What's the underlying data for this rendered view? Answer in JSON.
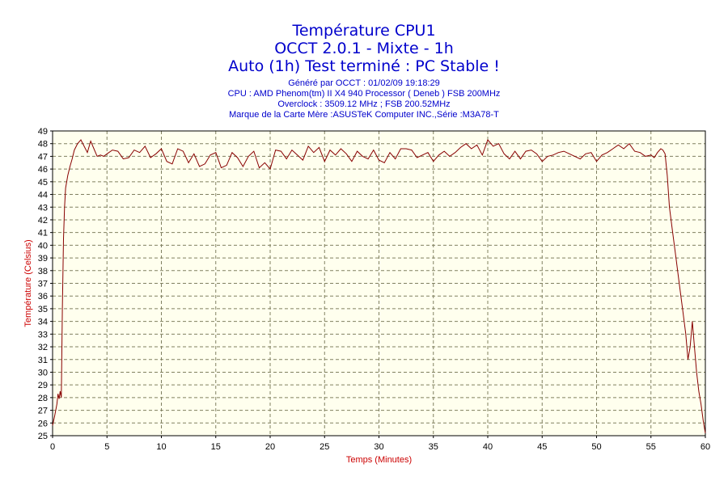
{
  "header": {
    "title_lines": [
      "Température CPU1",
      "OCCT 2.0.1 - Mixte - 1h",
      "Auto (1h) Test terminé : PC Stable !"
    ],
    "info_lines": [
      "Généré par OCCT : 01/02/09 19:18:29",
      "CPU : AMD Phenom(tm) II X4 940 Processor ( Deneb ) FSB 200MHz",
      "Overclock : 3509.12 MHz ; FSB 200.52MHz",
      "Marque de la Carte Mère :ASUSTeK Computer INC.,Série :M3A78-T"
    ]
  },
  "colors": {
    "title": "#0000cc",
    "axis_label": "#cc0000",
    "line": "#880000",
    "plot_background": "#ffffee",
    "grid": "#808060"
  },
  "chart_data": {
    "type": "line",
    "title": "Température CPU1",
    "xlabel": "Temps (Minutes)",
    "ylabel": "Température (Celsius)",
    "xlim": [
      0,
      60
    ],
    "ylim": [
      25,
      49
    ],
    "xticks": [
      0,
      5,
      10,
      15,
      20,
      25,
      30,
      35,
      40,
      45,
      50,
      55,
      60
    ],
    "yticks": [
      25,
      26,
      27,
      28,
      29,
      30,
      31,
      32,
      33,
      34,
      35,
      36,
      37,
      38,
      39,
      40,
      41,
      42,
      43,
      44,
      45,
      46,
      47,
      48,
      49
    ],
    "grid": true,
    "legend": "none",
    "series": [
      {
        "x": [
          0,
          0.2,
          0.4,
          0.5,
          0.6,
          0.7,
          0.8,
          0.9,
          1.0,
          1.1,
          1.2,
          1.4,
          1.6,
          1.8,
          2.0,
          2.3,
          2.6,
          2.9,
          3.2,
          3.5,
          3.8,
          4.1,
          4.4,
          4.7,
          5.0,
          5.5,
          6.0,
          6.5,
          7.0,
          7.5,
          8.0,
          8.5,
          9.0,
          9.5,
          10.0,
          10.5,
          11.0,
          11.5,
          12.0,
          12.5,
          13.0,
          13.5,
          14.0,
          14.5,
          15.0,
          15.5,
          16.0,
          16.5,
          17.0,
          17.5,
          18.0,
          18.5,
          19.0,
          19.5,
          20.0,
          20.5,
          21.0,
          21.5,
          22.0,
          22.5,
          23.0,
          23.5,
          24.0,
          24.5,
          25.0,
          25.5,
          26.0,
          26.5,
          27.0,
          27.5,
          28.0,
          28.5,
          29.0,
          29.5,
          30.0,
          30.5,
          31.0,
          31.5,
          32.0,
          32.5,
          33.0,
          33.5,
          34.0,
          34.5,
          35.0,
          35.5,
          36.0,
          36.5,
          37.0,
          37.5,
          38.0,
          38.5,
          39.0,
          39.5,
          40.0,
          40.5,
          41.0,
          41.5,
          42.0,
          42.5,
          43.0,
          43.5,
          44.0,
          44.5,
          45.0,
          45.5,
          46.0,
          46.5,
          47.0,
          47.5,
          48.0,
          48.5,
          49.0,
          49.5,
          50.0,
          50.5,
          51.0,
          51.5,
          52.0,
          52.5,
          53.0,
          53.5,
          54.0,
          54.5,
          55.0,
          55.3,
          55.6,
          55.9,
          56.1,
          56.3,
          56.5,
          56.7,
          57.0,
          57.3,
          57.6,
          57.9,
          58.2,
          58.4,
          58.6,
          58.8,
          59.0,
          59.2,
          59.4,
          59.6,
          59.8,
          60.0
        ],
        "y": [
          25.8,
          26.6,
          27.5,
          28.3,
          27.9,
          28.5,
          28.0,
          35.0,
          40.5,
          43.0,
          44.5,
          45.5,
          46.2,
          46.8,
          47.5,
          48.0,
          48.3,
          47.8,
          47.3,
          48.2,
          47.6,
          47.0,
          47.1,
          47.0,
          47.2,
          47.5,
          47.4,
          46.8,
          46.9,
          47.5,
          47.3,
          47.8,
          46.9,
          47.2,
          47.6,
          46.6,
          46.4,
          47.6,
          47.4,
          46.5,
          47.2,
          46.2,
          46.4,
          47.1,
          47.3,
          46.1,
          46.3,
          47.3,
          46.9,
          46.2,
          47.0,
          47.4,
          46.1,
          46.5,
          46.0,
          47.5,
          47.4,
          46.8,
          47.5,
          47.1,
          46.7,
          47.8,
          47.3,
          47.7,
          46.6,
          47.5,
          47.1,
          47.6,
          47.2,
          46.6,
          47.4,
          47.0,
          46.8,
          47.5,
          46.7,
          46.5,
          47.3,
          46.8,
          47.6,
          47.6,
          47.5,
          46.9,
          47.1,
          47.3,
          46.6,
          47.1,
          47.4,
          47.0,
          47.3,
          47.7,
          48.0,
          47.6,
          47.9,
          47.1,
          48.3,
          47.8,
          48.0,
          47.2,
          46.8,
          47.4,
          46.8,
          47.4,
          47.5,
          47.2,
          46.6,
          47.0,
          47.1,
          47.3,
          47.4,
          47.2,
          47.0,
          46.8,
          47.2,
          47.3,
          46.6,
          47.1,
          47.3,
          47.6,
          47.9,
          47.6,
          48.0,
          47.4,
          47.3,
          47.0,
          47.1,
          46.9,
          47.3,
          47.6,
          47.5,
          47.2,
          45.5,
          43.0,
          41.0,
          39.0,
          37.0,
          35.0,
          33.0,
          31.0,
          32.0,
          34.0,
          32.0,
          30.0,
          28.5,
          27.5,
          26.2,
          25.2
        ]
      }
    ]
  }
}
